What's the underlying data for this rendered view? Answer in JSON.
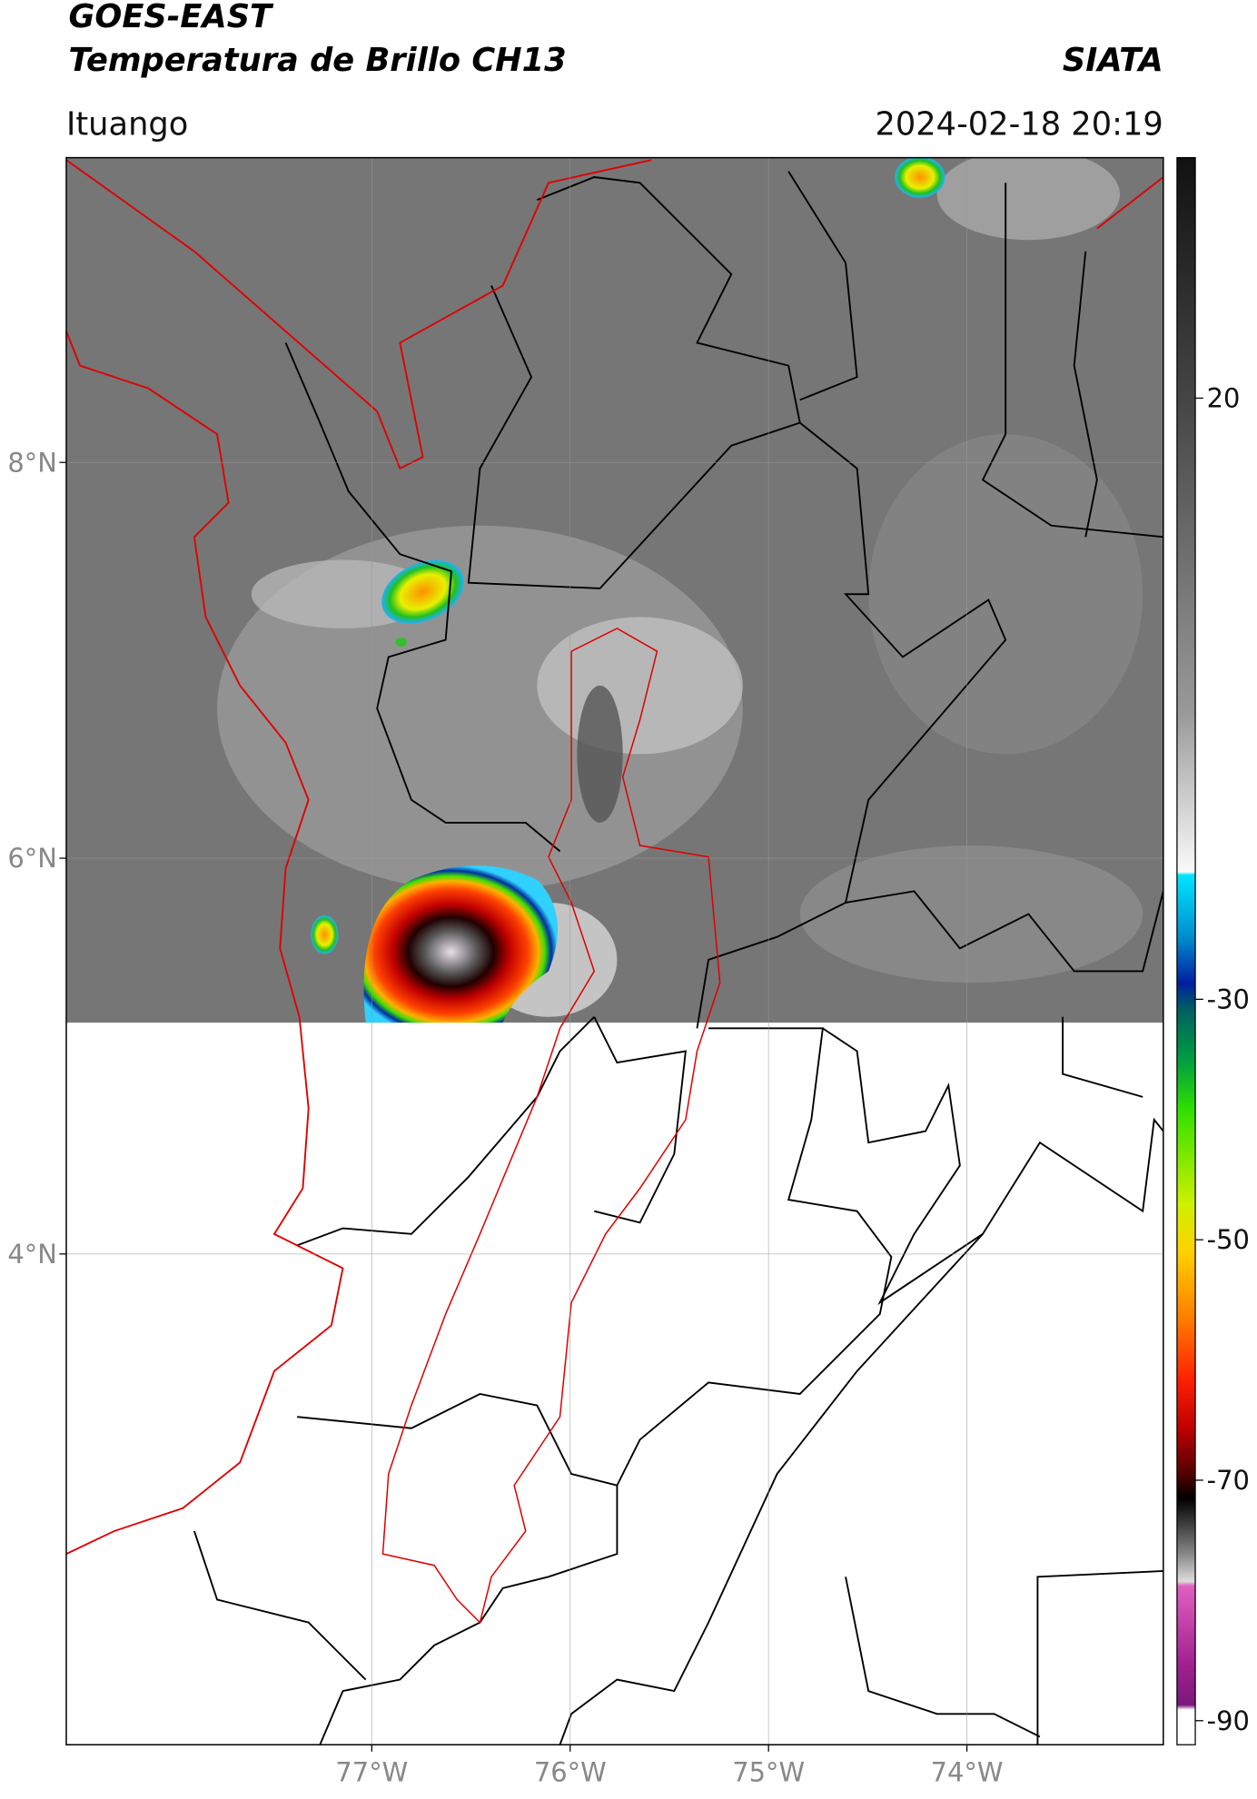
{
  "chart_data": {
    "type": "map",
    "title": "GOES-EAST",
    "subtitle": "Temperatura de Brillo CH13",
    "source": "SIATA",
    "location": "Ituango",
    "datetime": "2024-02-18 20:19",
    "xlim": [
      -78.54,
      -73.01
    ],
    "ylim": [
      1.52,
      9.54
    ],
    "xticks": [
      {
        "value": -77,
        "label": "77°W"
      },
      {
        "value": -76,
        "label": "76°W"
      },
      {
        "value": -75,
        "label": "75°W"
      },
      {
        "value": -74,
        "label": "74°W"
      }
    ],
    "yticks": [
      {
        "value": 8,
        "label": "8°N"
      },
      {
        "value": 6,
        "label": "6°N"
      },
      {
        "value": 4,
        "label": "4°N"
      }
    ],
    "grid": true,
    "colorbar": {
      "lim": [
        -92,
        40
      ],
      "ticks": [
        20,
        -30,
        -50,
        -70,
        -90
      ]
    }
  }
}
